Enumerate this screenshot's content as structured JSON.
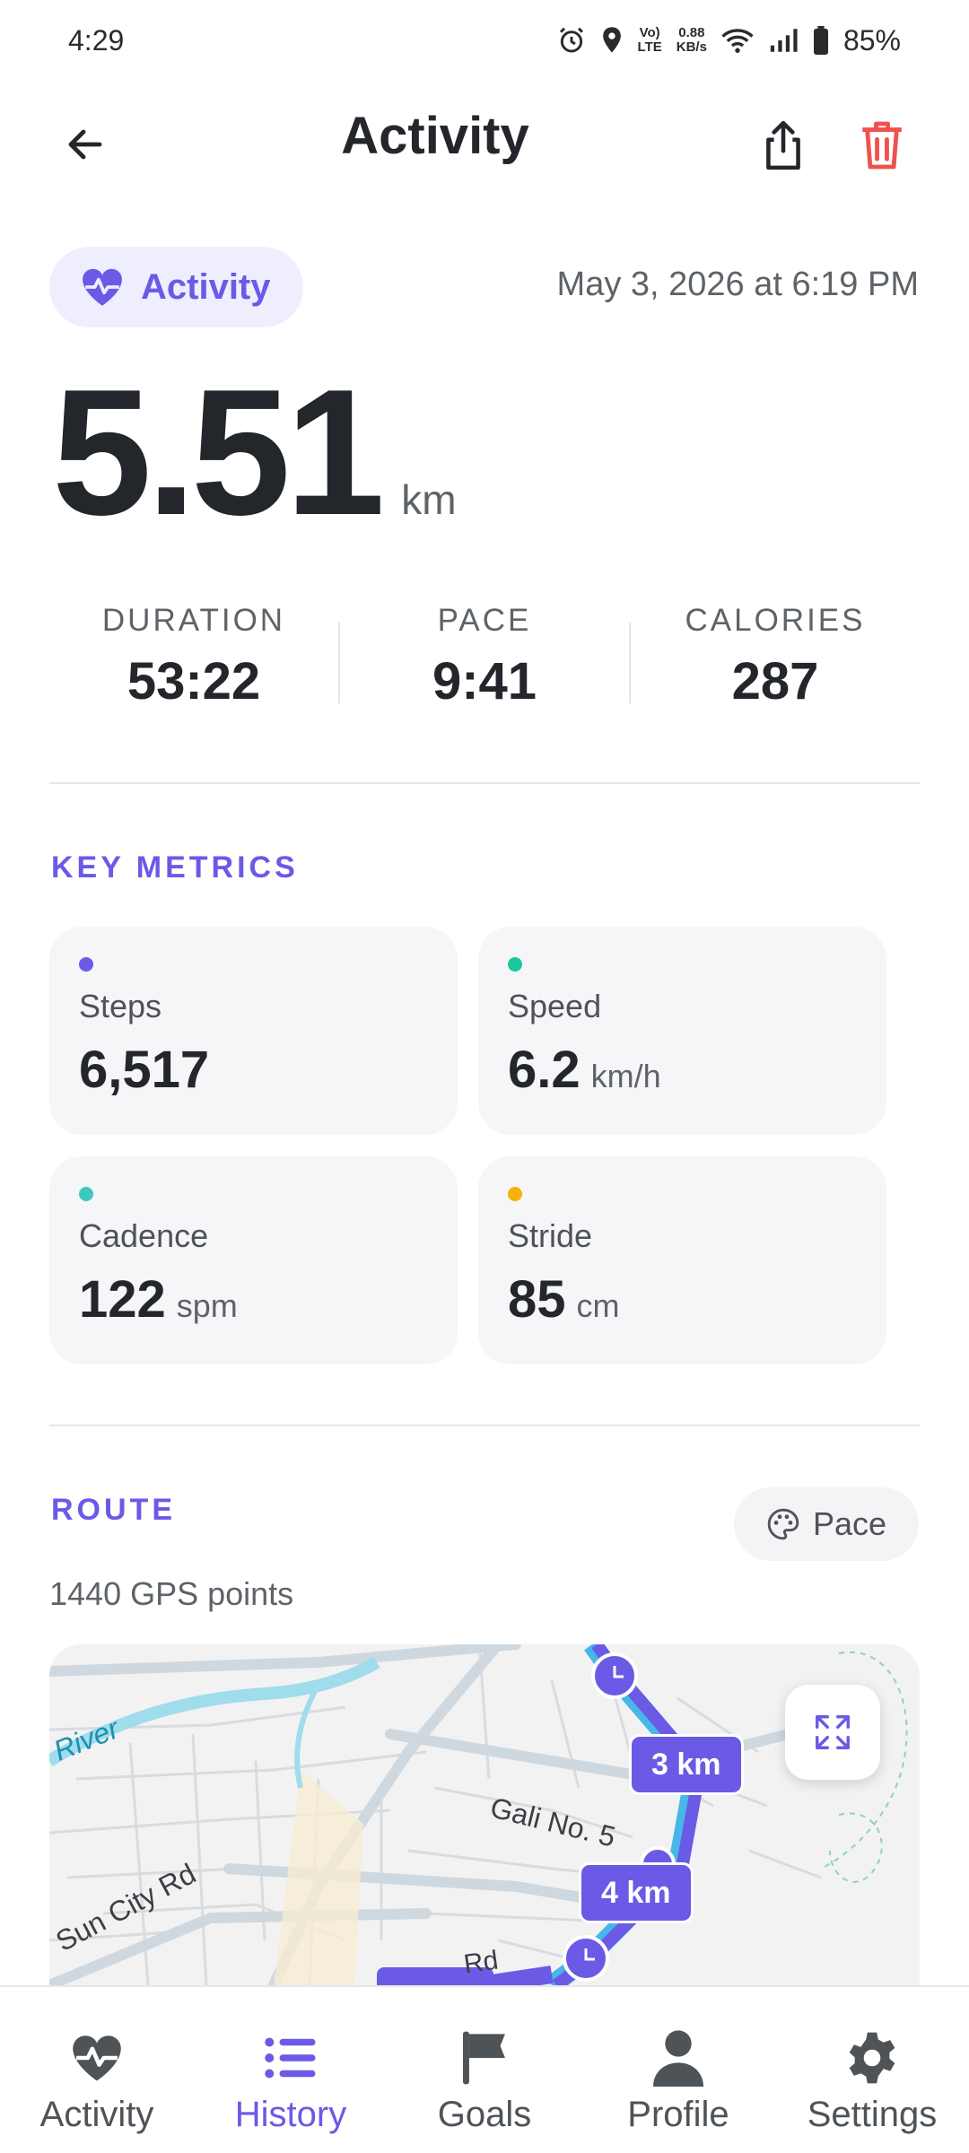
{
  "status_bar": {
    "time": "4:29",
    "net_speed_value": "0.88",
    "net_speed_unit": "KB/s",
    "lte_label": "LTE",
    "volte_label": "Vo)",
    "battery": "85%"
  },
  "header": {
    "title": "Activity"
  },
  "activity": {
    "type_label": "Activity",
    "date": "May 3, 2026 at 6:19 PM",
    "distance_value": "5.51",
    "distance_unit": "km"
  },
  "summary": [
    {
      "label": "DURATION",
      "value": "53:22"
    },
    {
      "label": "PACE",
      "value": "9:41"
    },
    {
      "label": "CALORIES",
      "value": "287"
    }
  ],
  "key_metrics": {
    "title": "KEY METRICS",
    "items": [
      {
        "label": "Steps",
        "value": "6,517",
        "unit": "",
        "color": "#6a5ae6"
      },
      {
        "label": "Speed",
        "value": "6.2",
        "unit": "km/h",
        "color": "#19c79a"
      },
      {
        "label": "Cadence",
        "value": "122",
        "unit": "spm",
        "color": "#3ec9bd"
      },
      {
        "label": "Stride",
        "value": "85",
        "unit": "cm",
        "color": "#f5b20c"
      }
    ]
  },
  "route": {
    "title": "ROUTE",
    "color_mode_label": "Pace",
    "gps_points": "1440 GPS points",
    "map_labels": {
      "river": "River",
      "street_1": "Gali No. 5",
      "street_2": "Sun City Rd",
      "street_3": "Rd"
    },
    "markers": [
      "3 km",
      "4 km"
    ]
  },
  "bottom_nav": [
    {
      "label": "Activity",
      "active": false
    },
    {
      "label": "History",
      "active": true
    },
    {
      "label": "Goals",
      "active": false
    },
    {
      "label": "Profile",
      "active": false
    },
    {
      "label": "Settings",
      "active": false
    }
  ],
  "colors": {
    "accent": "#6a5ae6",
    "delete": "#f0514d",
    "text_primary": "#23272b",
    "text_secondary": "#5e6368"
  }
}
